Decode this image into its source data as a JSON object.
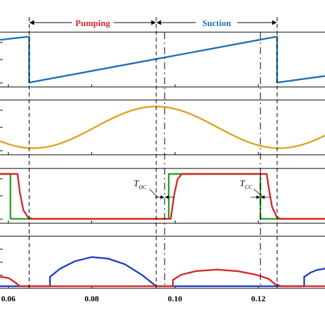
{
  "chart_data": {
    "type": "line",
    "x_range": [
      0.058,
      0.136
    ],
    "x_ticks": [
      {
        "value": 0.06,
        "label": "0.06"
      },
      {
        "value": 0.08,
        "label": "0.08"
      },
      {
        "value": 0.1,
        "label": "0.10"
      },
      {
        "value": 0.12,
        "label": "0.12"
      }
    ],
    "phases": [
      {
        "label": "Pumping",
        "start": 0.065,
        "end": 0.0955,
        "color": "#d62728"
      },
      {
        "label": "Suction",
        "start": 0.0955,
        "end": 0.1245,
        "color": "#1f6fb4"
      }
    ],
    "dashed_lines": [
      0.065,
      0.0955,
      0.0975,
      0.1205,
      0.1245
    ],
    "annotations": [
      {
        "text": "T",
        "subscript": "OC",
        "at": 0.0975
      },
      {
        "text": "T",
        "subscript": "CC",
        "at": 0.1205
      }
    ],
    "panels": [
      {
        "name": "sawtooth-panel",
        "ylim": [
          0,
          1
        ],
        "series": [
          {
            "color": "#1f6fb4",
            "points": [
              [
                0.058,
                0.86
              ],
              [
                0.065,
                0.92
              ],
              [
                0.065,
                0.08
              ],
              [
                0.1245,
                0.92
              ],
              [
                0.1245,
                0.08
              ],
              [
                0.136,
                0.2
              ]
            ]
          }
        ]
      },
      {
        "name": "sine-panel",
        "ylim": [
          0,
          1
        ],
        "series": [
          {
            "color": "#d9a520",
            "function": "sine",
            "period": 0.059,
            "peak_x": 0.0955,
            "min": 0.12,
            "max": 0.88
          }
        ]
      },
      {
        "name": "valve-panel",
        "ylim": [
          0,
          1
        ],
        "series": [
          {
            "color": "#2ca02c",
            "points": [
              [
                0.058,
                0.9
              ],
              [
                0.0605,
                0.9
              ],
              [
                0.0605,
                0.08
              ],
              [
                0.0985,
                0.08
              ],
              [
                0.0985,
                0.9
              ],
              [
                0.1205,
                0.9
              ],
              [
                0.1205,
                0.08
              ],
              [
                0.136,
                0.08
              ]
            ]
          },
          {
            "color": "#d62728",
            "points": [
              [
                0.058,
                0.9
              ],
              [
                0.0622,
                0.9
              ],
              [
                0.0628,
                0.55
              ],
              [
                0.0636,
                0.24
              ],
              [
                0.0648,
                0.1
              ],
              [
                0.066,
                0.08
              ],
              [
                0.099,
                0.08
              ],
              [
                0.0992,
                0.2
              ],
              [
                0.0998,
                0.52
              ],
              [
                0.1006,
                0.8
              ],
              [
                0.1016,
                0.9
              ],
              [
                0.122,
                0.9
              ],
              [
                0.1226,
                0.6
              ],
              [
                0.1233,
                0.3
              ],
              [
                0.1244,
                0.12
              ],
              [
                0.1252,
                0.08
              ],
              [
                0.136,
                0.08
              ]
            ]
          }
        ]
      },
      {
        "name": "flow-panel",
        "ylim": [
          0,
          1
        ],
        "series": [
          {
            "color": "#1f3fbf",
            "points": [
              [
                0.058,
                0.04
              ],
              [
                0.07,
                0.04
              ],
              [
                0.07,
                0.22
              ],
              [
                0.0725,
                0.38
              ],
              [
                0.076,
                0.52
              ],
              [
                0.08,
                0.6
              ],
              [
                0.084,
                0.57
              ],
              [
                0.088,
                0.46
              ],
              [
                0.092,
                0.26
              ],
              [
                0.0955,
                0.04
              ],
              [
                0.131,
                0.04
              ],
              [
                0.131,
                0.22
              ],
              [
                0.1325,
                0.3
              ],
              [
                0.134,
                0.35
              ],
              [
                0.136,
                0.38
              ]
            ]
          },
          {
            "color": "#d62728",
            "points": [
              [
                0.058,
                0.22
              ],
              [
                0.06,
                0.2
              ],
              [
                0.0615,
                0.12
              ],
              [
                0.0628,
                0.04
              ],
              [
                0.0995,
                0.04
              ],
              [
                0.0995,
                0.16
              ],
              [
                0.1015,
                0.26
              ],
              [
                0.105,
                0.33
              ],
              [
                0.11,
                0.36
              ],
              [
                0.115,
                0.33
              ],
              [
                0.1195,
                0.26
              ],
              [
                0.1225,
                0.18
              ],
              [
                0.124,
                0.08
              ],
              [
                0.1255,
                0.04
              ],
              [
                0.136,
                0.04
              ]
            ]
          }
        ]
      }
    ]
  }
}
